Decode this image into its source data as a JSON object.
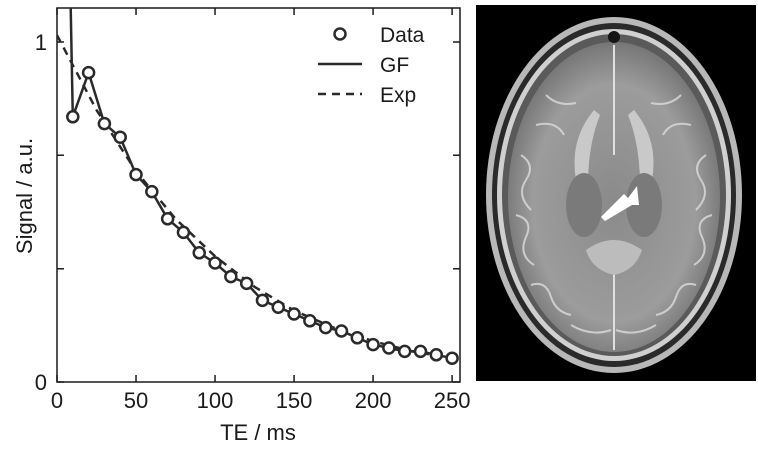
{
  "chart_data": {
    "type": "line",
    "xlabel": "TE / ms",
    "ylabel": "Signal / a.u.",
    "xlim": [
      0,
      255
    ],
    "ylim": [
      0,
      1.1
    ],
    "x_ticks": [
      0,
      50,
      100,
      150,
      200,
      250
    ],
    "y_ticks": [
      0,
      1
    ],
    "grid": false,
    "legend_position": "top-right",
    "series": [
      {
        "name": "Data",
        "style": "circles",
        "x": [
          10,
          20,
          30,
          40,
          50,
          60,
          70,
          80,
          90,
          100,
          110,
          120,
          130,
          140,
          150,
          160,
          170,
          180,
          190,
          200,
          210,
          220,
          230,
          240,
          250
        ],
        "y": [
          0.78,
          0.91,
          0.76,
          0.72,
          0.61,
          0.56,
          0.48,
          0.44,
          0.38,
          0.35,
          0.31,
          0.29,
          0.24,
          0.22,
          0.2,
          0.18,
          0.16,
          0.15,
          0.13,
          0.11,
          0.1,
          0.09,
          0.09,
          0.08,
          0.07
        ]
      },
      {
        "name": "GF",
        "style": "solid",
        "x": [
          8.7,
          10,
          20,
          30,
          40,
          50,
          60,
          70,
          80,
          90,
          100,
          110,
          120,
          130,
          140,
          150,
          160,
          170,
          180,
          190,
          200,
          210,
          220,
          230,
          240,
          250
        ],
        "y": [
          1.1,
          0.78,
          0.91,
          0.76,
          0.72,
          0.61,
          0.56,
          0.48,
          0.44,
          0.38,
          0.35,
          0.31,
          0.29,
          0.24,
          0.22,
          0.2,
          0.18,
          0.16,
          0.15,
          0.13,
          0.11,
          0.1,
          0.09,
          0.09,
          0.08,
          0.07
        ]
      },
      {
        "name": "Exp",
        "style": "dashed",
        "x": [
          0,
          25,
          50,
          75,
          100,
          125,
          150,
          175,
          200,
          225,
          250
        ],
        "y": [
          1.02,
          0.8,
          0.62,
          0.48,
          0.37,
          0.28,
          0.21,
          0.16,
          0.12,
          0.09,
          0.07
        ]
      }
    ]
  },
  "image_panel": {
    "content": "mri-brain-slice",
    "arrow_color": "#ffffff"
  },
  "colors": {
    "line": "#2a2a2a",
    "axis": "#1a1a1a",
    "background": "#ffffff",
    "panel_background": "#000000"
  }
}
